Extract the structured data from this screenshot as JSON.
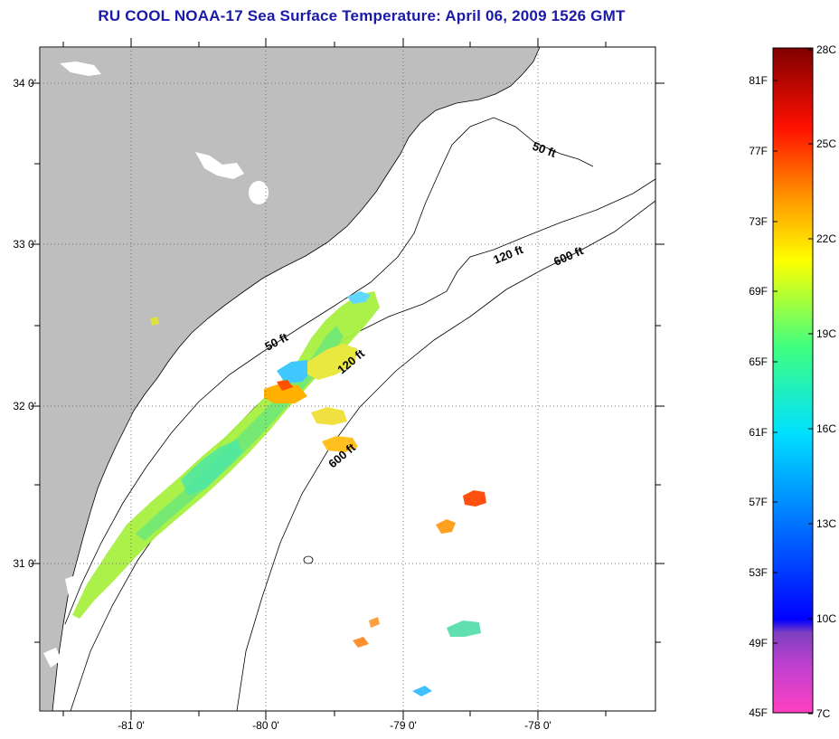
{
  "title": "RU COOL  NOAA-17  Sea Surface Temperature:  April 06, 2009 1526 GMT",
  "axes": {
    "lat_labels": [
      "34 0'",
      "33 0'",
      "32 0'",
      "31 0'"
    ],
    "lon_labels": [
      "-81 0'",
      "-80 0'",
      "-79 0'",
      "-78 0'"
    ]
  },
  "depth_contours": [
    {
      "label": "50 ft"
    },
    {
      "label": "120 ft"
    },
    {
      "label": "600 ft"
    },
    {
      "label": "50 ft"
    },
    {
      "label": "120 ft"
    },
    {
      "label": "600 ft"
    }
  ],
  "colorbar": {
    "fahrenheit_labels": [
      "81F",
      "77F",
      "73F",
      "69F",
      "65F",
      "61F",
      "57F",
      "53F",
      "49F",
      "45F"
    ],
    "celsius_labels": [
      "28C",
      "25C",
      "22C",
      "19C",
      "16C",
      "13C",
      "10C",
      "7C"
    ],
    "colors": [
      "#ff40c0",
      "#8040c0",
      "#0000ff",
      "#0080ff",
      "#00e0ff",
      "#40ff80",
      "#ffff00",
      "#ff9000",
      "#ff0000",
      "#800000"
    ]
  },
  "colors": {
    "land": "#bebebe",
    "ocean": "#ffffff",
    "title": "#1a1aa6"
  }
}
